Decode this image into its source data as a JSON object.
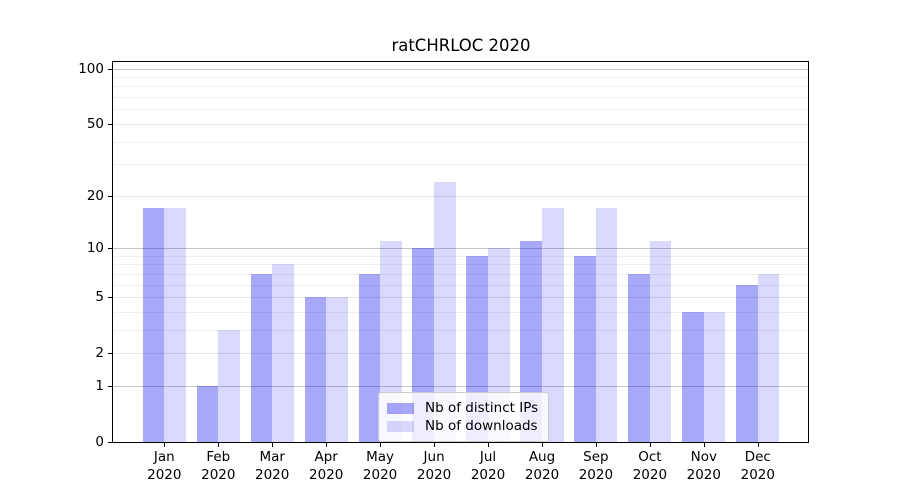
{
  "figure": {
    "title": "ratCHRLOC 2020"
  },
  "chart_data": {
    "type": "bar",
    "title": "ratCHRLOC 2020",
    "categories": [
      "Jan 2020",
      "Feb 2020",
      "Mar 2020",
      "Apr 2020",
      "May 2020",
      "Jun 2020",
      "Jul 2020",
      "Aug 2020",
      "Sep 2020",
      "Oct 2020",
      "Nov 2020",
      "Dec 2020"
    ],
    "series": [
      {
        "name": "Nb of distinct IPs",
        "color": "rgba(0,0,238,0.34)",
        "values": [
          17,
          1,
          7,
          5,
          7,
          10,
          9,
          11,
          9,
          7,
          4,
          6
        ]
      },
      {
        "name": "Nb of downloads",
        "color": "rgba(0,0,238,0.15)",
        "values": [
          17,
          3,
          8,
          5,
          11,
          24,
          10,
          17,
          17,
          11,
          4,
          7
        ]
      }
    ],
    "y_axis": {
      "scale": "log10(value+1)",
      "ticks": [
        0,
        1,
        2,
        5,
        10,
        20,
        50,
        100
      ],
      "minor_gridlines": [
        3,
        4,
        6,
        7,
        8,
        9,
        30,
        40,
        60,
        70,
        80,
        90
      ],
      "range": [
        0,
        110
      ]
    },
    "x_axis": {
      "tick_line1": [
        "Jan",
        "Feb",
        "Mar",
        "Apr",
        "May",
        "Jun",
        "Jul",
        "Aug",
        "Sep",
        "Oct",
        "Nov",
        "Dec"
      ],
      "tick_line2": "2020"
    },
    "legend": {
      "position": "lower center",
      "entries": [
        "Nb of distinct IPs",
        "Nb of downloads"
      ]
    },
    "grid": "horizontal"
  },
  "colors": {
    "bar_ips": "rgba(0,0,238,0.34)",
    "bar_downloads": "rgba(0,0,238,0.15)",
    "gridline_decade": "#c6c6c6",
    "gridline_major": "#e7e7e7",
    "gridline_minor": "#efefef",
    "spine": "#000000",
    "legend_border": "#cccccc",
    "text": "#000000"
  }
}
